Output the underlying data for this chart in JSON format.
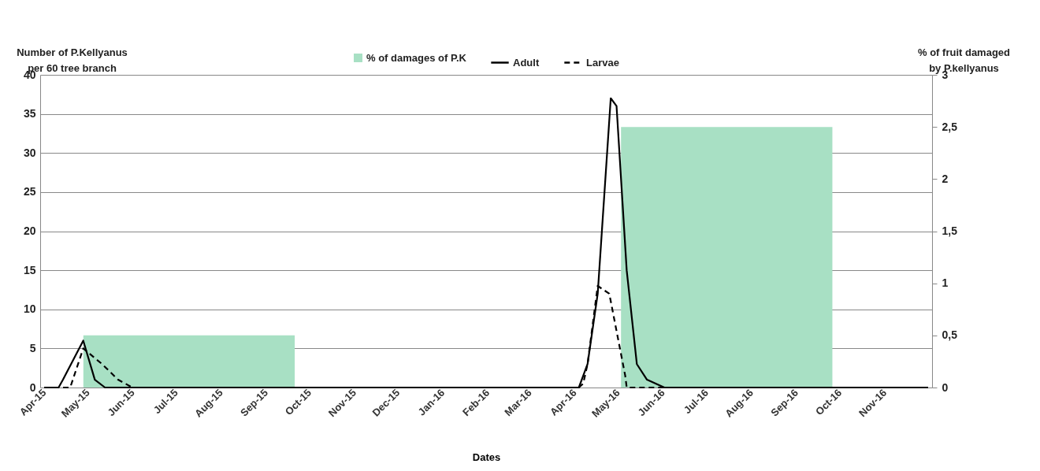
{
  "chart_data": {
    "type": "line",
    "xlabel": "Dates",
    "ylabel": "Number of P.Kellyanus per 60 tree branch",
    "y2label": "% of fruit damaged by P.kellyanus",
    "legend": "top",
    "grid": "y",
    "xlim": [
      "2015-04-01",
      "2016-12-01"
    ],
    "xticks": [
      {
        "value": "2015-04",
        "label": "Apr-15"
      },
      {
        "value": "2015-05",
        "label": "May-15"
      },
      {
        "value": "2015-06",
        "label": "Jun-15"
      },
      {
        "value": "2015-07",
        "label": "Jul-15"
      },
      {
        "value": "2015-08",
        "label": "Aug-15"
      },
      {
        "value": "2015-09",
        "label": "Sep-15"
      },
      {
        "value": "2015-10",
        "label": "Oct-15"
      },
      {
        "value": "2015-11",
        "label": "Nov-15"
      },
      {
        "value": "2015-12",
        "label": "Dec-15"
      },
      {
        "value": "2016-01",
        "label": "Jan-16"
      },
      {
        "value": "2016-02",
        "label": "Feb-16"
      },
      {
        "value": "2016-03",
        "label": "Mar-16"
      },
      {
        "value": "2016-04",
        "label": "Apr-16"
      },
      {
        "value": "2016-05",
        "label": "May-16"
      },
      {
        "value": "2016-06",
        "label": "Jun-16"
      },
      {
        "value": "2016-07",
        "label": "Jul-16"
      },
      {
        "value": "2016-08",
        "label": "Aug-16"
      },
      {
        "value": "2016-09",
        "label": "Sep-16"
      },
      {
        "value": "2016-10",
        "label": "Oct-16"
      },
      {
        "value": "2016-11",
        "label": "Nov-16"
      }
    ],
    "ylim": [
      0,
      40
    ],
    "yticks": [
      0,
      5,
      10,
      15,
      20,
      25,
      30,
      35,
      40
    ],
    "y2lim": [
      0,
      3
    ],
    "y2ticks": [
      0,
      {
        "value": 0.5,
        "label": "0,5"
      },
      1,
      {
        "value": 1.5,
        "label": "1,5"
      },
      2,
      {
        "value": 2.5,
        "label": "2,5"
      },
      3
    ],
    "series": [
      {
        "name": "% of damages of P.K",
        "type": "bar",
        "axis": "y2",
        "color": "#a8e0c4",
        "x": [
          "2015-07-10",
          "2016-07-15"
        ],
        "values": [
          0.5,
          2.5
        ]
      },
      {
        "name": "Adult",
        "color": "#000000",
        "line_style": "solid",
        "x": [
          "2015-04-01",
          "2015-04-11",
          "2015-04-14",
          "2015-04-28",
          "2015-05-06",
          "2015-05-13",
          "2016-04-04",
          "2016-04-10",
          "2016-04-17",
          "2016-04-26",
          "2016-04-30",
          "2016-05-07",
          "2016-05-14",
          "2016-05-21",
          "2016-06-02",
          "2016-12-01"
        ],
        "values": [
          0,
          0,
          1,
          6,
          1,
          0,
          0,
          3,
          12,
          37,
          36,
          15,
          3,
          1,
          0,
          0
        ]
      },
      {
        "name": "Larvae",
        "color": "#000000",
        "line_style": "dashed",
        "x": [
          "2015-04-01",
          "2015-04-19",
          "2015-04-28",
          "2015-05-11",
          "2015-05-22",
          "2015-06-01",
          "2016-04-04",
          "2016-04-07",
          "2016-04-10",
          "2016-04-17",
          "2016-04-25",
          "2016-05-06",
          "2016-05-07",
          "2016-12-01"
        ],
        "values": [
          0,
          0,
          5,
          3,
          1,
          0,
          0,
          0.5,
          3,
          13,
          12,
          1.5,
          0,
          0
        ]
      }
    ]
  }
}
